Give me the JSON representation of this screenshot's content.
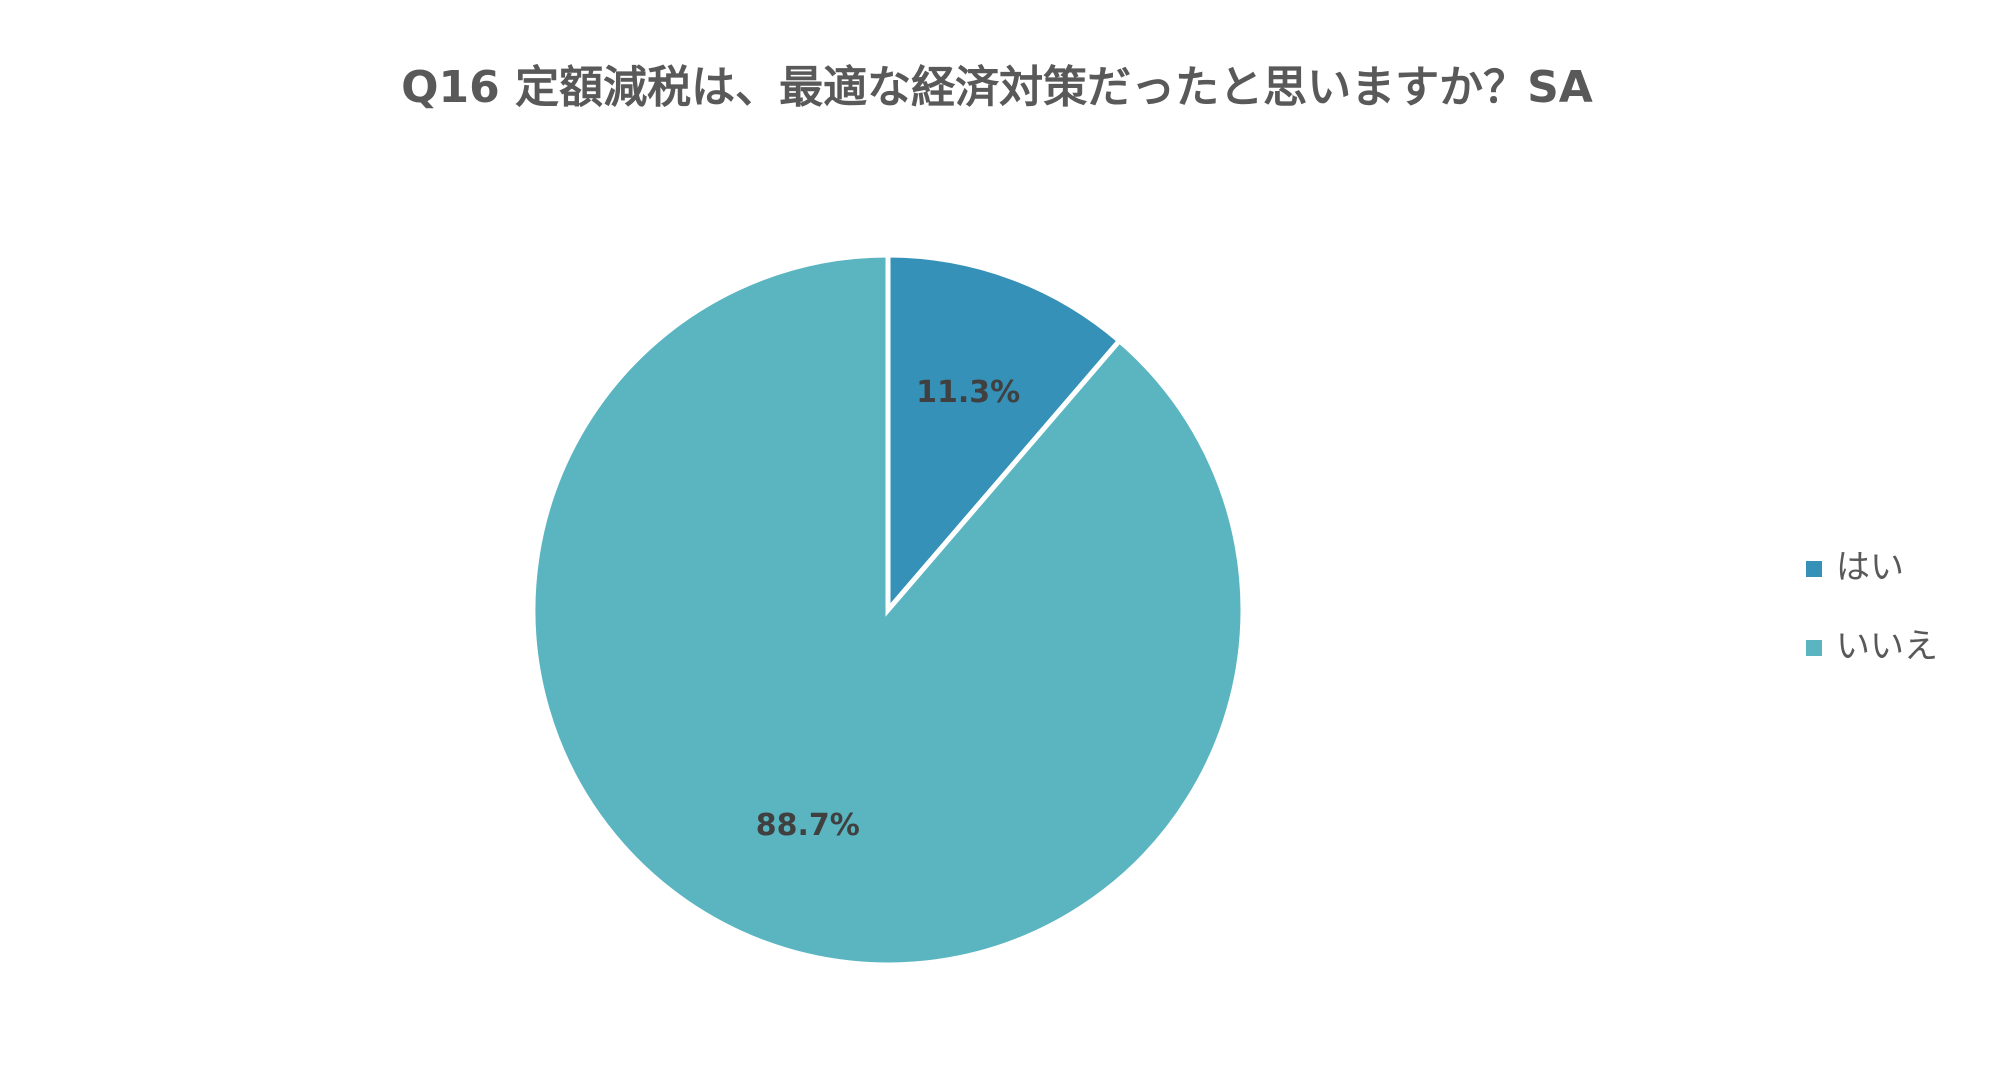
{
  "chart_data": {
    "type": "pie",
    "title": "Q16 定額減税は、最適な経済対策だったと思いますか？SA",
    "categories": [
      "はい",
      "いいえ"
    ],
    "values": [
      11.3,
      88.7
    ],
    "value_labels": [
      "11.3%",
      "88.7%"
    ],
    "colors": [
      "#3591b8",
      "#5ab5c0"
    ],
    "legend": "right"
  }
}
